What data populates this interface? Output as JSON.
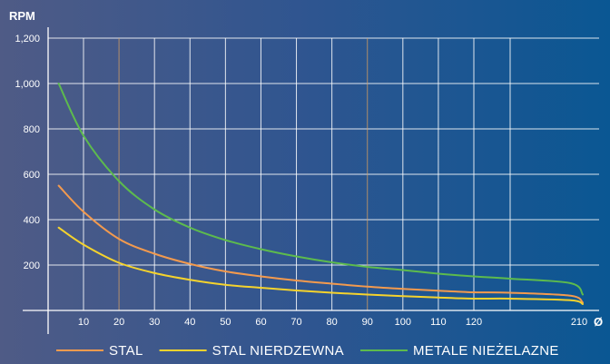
{
  "chart_data": {
    "type": "line",
    "title": "",
    "ylabel": "RPM",
    "xlabel": "Ø",
    "y_ticks": [
      200,
      400,
      600,
      800,
      1000,
      1200
    ],
    "y_tick_labels": [
      "200",
      "400",
      "600",
      "800",
      "1,000",
      "1,200"
    ],
    "ylim": [
      0,
      1200
    ],
    "x_ticks": [
      10,
      20,
      30,
      40,
      50,
      60,
      70,
      80,
      90,
      100,
      110,
      120,
      210
    ],
    "grid": true,
    "legend_position": "bottom",
    "series": [
      {
        "name": "STAL",
        "color": "#f39a4e",
        "points": [
          [
            3,
            550
          ],
          [
            10,
            435
          ],
          [
            20,
            315
          ],
          [
            30,
            250
          ],
          [
            40,
            205
          ],
          [
            50,
            172
          ],
          [
            60,
            150
          ],
          [
            70,
            132
          ],
          [
            80,
            118
          ],
          [
            90,
            105
          ],
          [
            100,
            95
          ],
          [
            110,
            87
          ],
          [
            120,
            80
          ],
          [
            150,
            78
          ],
          [
            200,
            65
          ],
          [
            210,
            35
          ]
        ]
      },
      {
        "name": "STAL NIERDZEWNA",
        "color": "#f5d32d",
        "points": [
          [
            3,
            365
          ],
          [
            10,
            290
          ],
          [
            20,
            210
          ],
          [
            30,
            165
          ],
          [
            40,
            135
          ],
          [
            50,
            113
          ],
          [
            60,
            100
          ],
          [
            70,
            88
          ],
          [
            80,
            78
          ],
          [
            90,
            70
          ],
          [
            100,
            63
          ],
          [
            110,
            57
          ],
          [
            120,
            52
          ],
          [
            150,
            52
          ],
          [
            200,
            45
          ],
          [
            210,
            28
          ]
        ]
      },
      {
        "name": "METALE NIEŻELAZNE",
        "color": "#5dbb4d",
        "points": [
          [
            3,
            1000
          ],
          [
            10,
            770
          ],
          [
            20,
            570
          ],
          [
            30,
            445
          ],
          [
            40,
            365
          ],
          [
            50,
            310
          ],
          [
            60,
            270
          ],
          [
            70,
            238
          ],
          [
            80,
            212
          ],
          [
            90,
            192
          ],
          [
            100,
            178
          ],
          [
            110,
            162
          ],
          [
            120,
            150
          ],
          [
            150,
            140
          ],
          [
            200,
            120
          ],
          [
            210,
            70
          ]
        ]
      }
    ]
  }
}
